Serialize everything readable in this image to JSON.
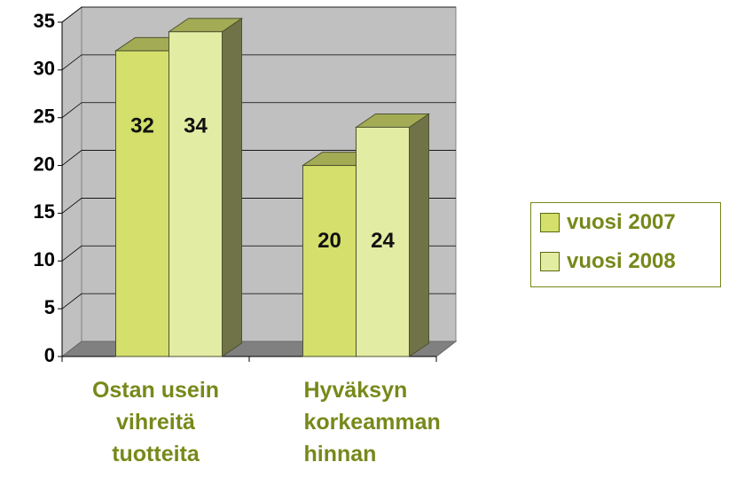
{
  "chart_data": {
    "type": "bar3d",
    "categories": [
      "Ostan usein\nvihreitä\ntuotteita",
      "Hyväksyn\nkorkeamman\nhinnan"
    ],
    "series": [
      {
        "name": "vuosi 2007",
        "color": "#d4df6c",
        "values": [
          32,
          20
        ]
      },
      {
        "name": "vuosi 2008",
        "color": "#e3eca3",
        "values": [
          34,
          24
        ]
      }
    ],
    "ylim": [
      0,
      35
    ],
    "yticks": [
      0,
      5,
      10,
      15,
      20,
      25,
      30,
      35
    ],
    "grid": true,
    "legend": "right"
  }
}
